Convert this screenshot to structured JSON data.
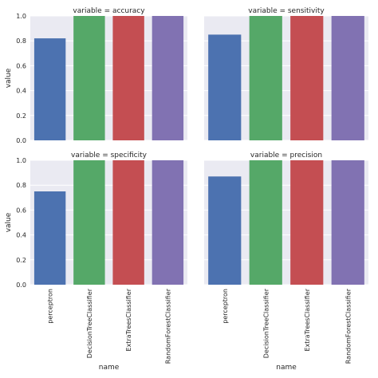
{
  "chart_data": [
    {
      "type": "bar",
      "title": "variable = accuracy",
      "categories": [
        "perceptron",
        "DecisionTreeClassifier",
        "ExtraTreesClassifier",
        "RandomForestClassifier"
      ],
      "values": [
        0.82,
        1.0,
        1.0,
        1.0
      ],
      "ylabel": "value",
      "xlabel": "",
      "ylim": [
        0.0,
        1.0
      ],
      "yticks": [
        "0.0",
        "0.2",
        "0.4",
        "0.6",
        "0.8",
        "1.0"
      ],
      "grid": true
    },
    {
      "type": "bar",
      "title": "variable = sensitivity",
      "categories": [
        "perceptron",
        "DecisionTreeClassifier",
        "ExtraTreesClassifier",
        "RandomForestClassifier"
      ],
      "values": [
        0.85,
        1.0,
        1.0,
        1.0
      ],
      "ylabel": "",
      "xlabel": "",
      "ylim": [
        0.0,
        1.0
      ],
      "yticks": [
        "0.0",
        "0.2",
        "0.4",
        "0.6",
        "0.8",
        "1.0"
      ],
      "grid": true
    },
    {
      "type": "bar",
      "title": "variable = specificity",
      "categories": [
        "perceptron",
        "DecisionTreeClassifier",
        "ExtraTreesClassifier",
        "RandomForestClassifier"
      ],
      "values": [
        0.75,
        1.0,
        1.0,
        1.0
      ],
      "ylabel": "value",
      "xlabel": "name",
      "ylim": [
        0.0,
        1.0
      ],
      "yticks": [
        "0.0",
        "0.2",
        "0.4",
        "0.6",
        "0.8",
        "1.0"
      ],
      "grid": true
    },
    {
      "type": "bar",
      "title": "variable = precision",
      "categories": [
        "perceptron",
        "DecisionTreeClassifier",
        "ExtraTreesClassifier",
        "RandomForestClassifier"
      ],
      "values": [
        0.87,
        1.0,
        1.0,
        1.0
      ],
      "ylabel": "",
      "xlabel": "name",
      "ylim": [
        0.0,
        1.0
      ],
      "yticks": [
        "0.0",
        "0.2",
        "0.4",
        "0.6",
        "0.8",
        "1.0"
      ],
      "grid": true
    }
  ],
  "colors": {
    "bars": [
      "#4c72b0",
      "#55a868",
      "#c44e52",
      "#8172b2"
    ],
    "panel_background": "#eaeaf2",
    "grid": "#ffffff"
  }
}
